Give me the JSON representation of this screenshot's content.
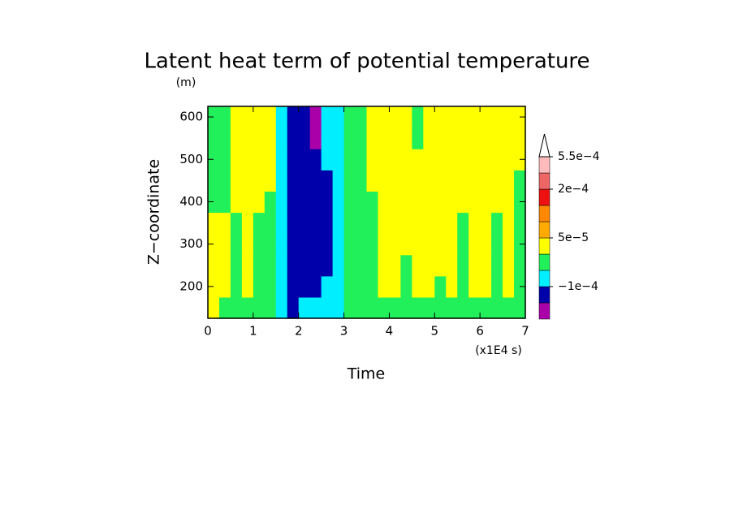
{
  "chart_data": {
    "type": "contour",
    "title": "Latent heat term of potential temperature",
    "y_unit": "(m)",
    "ylabel": "Z−coordinate",
    "xlabel": "Time",
    "x_unit": "(x1E4 s)",
    "xlim": [
      0,
      7
    ],
    "ylim": [
      125,
      625
    ],
    "xticks": [
      0,
      1,
      2,
      3,
      4,
      5,
      6,
      7
    ],
    "yticks": [
      200,
      300,
      400,
      500,
      600
    ],
    "x": [
      0.125,
      0.375,
      0.625,
      0.875,
      1.125,
      1.375,
      1.625,
      1.875,
      2.125,
      2.375,
      2.625,
      2.875,
      3.125,
      3.375,
      3.625,
      3.875,
      4.125,
      4.375,
      4.625,
      4.875,
      5.125,
      5.375,
      5.625,
      5.875,
      6.125,
      6.375,
      6.625,
      6.875
    ],
    "y": [
      150,
      200,
      250,
      300,
      350,
      400,
      450,
      500,
      550,
      600
    ],
    "z": [
      [
        2e-05,
        -2e-05,
        -2e-05,
        -2e-05,
        -2e-05,
        -2e-05,
        -7e-05,
        -0.00012,
        -7e-05,
        -7e-05,
        -7e-05,
        -7e-05,
        -2e-05,
        -2e-05,
        -2e-05,
        -2e-05,
        -2e-05,
        -2e-05,
        -2e-05,
        -2e-05,
        -2e-05,
        -2e-05,
        -2e-05,
        -2e-05,
        -2e-05,
        -2e-05,
        -2e-05,
        -2e-05
      ],
      [
        2e-05,
        2e-05,
        -2e-05,
        2e-05,
        -2e-05,
        -2e-05,
        -7e-05,
        -0.00012,
        -0.00012,
        -0.00012,
        -7e-05,
        -7e-05,
        -2e-05,
        -2e-05,
        -2e-05,
        2e-05,
        2e-05,
        -2e-05,
        2e-05,
        2e-05,
        -2e-05,
        2e-05,
        -2e-05,
        2e-05,
        2e-05,
        -2e-05,
        2e-05,
        -2e-05
      ],
      [
        2e-05,
        2e-05,
        -2e-05,
        2e-05,
        -2e-05,
        -2e-05,
        -7e-05,
        -0.00012,
        -0.00012,
        -0.00012,
        -0.00012,
        -7e-05,
        -2e-05,
        -2e-05,
        -2e-05,
        2e-05,
        2e-05,
        -2e-05,
        2e-05,
        2e-05,
        2e-05,
        2e-05,
        -2e-05,
        2e-05,
        2e-05,
        -2e-05,
        2e-05,
        -2e-05
      ],
      [
        2e-05,
        2e-05,
        -2e-05,
        2e-05,
        -2e-05,
        -2e-05,
        -7e-05,
        -0.00012,
        -0.00012,
        -0.00012,
        -0.00012,
        -7e-05,
        -2e-05,
        -2e-05,
        -2e-05,
        2e-05,
        2e-05,
        2e-05,
        2e-05,
        2e-05,
        2e-05,
        2e-05,
        -2e-05,
        2e-05,
        2e-05,
        -2e-05,
        2e-05,
        -2e-05
      ],
      [
        2e-05,
        2e-05,
        -2e-05,
        2e-05,
        -2e-05,
        -2e-05,
        -7e-05,
        -0.00012,
        -0.00012,
        -0.00012,
        -0.00012,
        -7e-05,
        -2e-05,
        -2e-05,
        -2e-05,
        2e-05,
        2e-05,
        2e-05,
        2e-05,
        2e-05,
        2e-05,
        2e-05,
        -2e-05,
        2e-05,
        2e-05,
        -2e-05,
        2e-05,
        -2e-05
      ],
      [
        -2e-05,
        -2e-05,
        2e-05,
        2e-05,
        2e-05,
        -2e-05,
        -7e-05,
        -0.00012,
        -0.00012,
        -0.00012,
        -0.00012,
        -7e-05,
        -2e-05,
        -2e-05,
        -2e-05,
        2e-05,
        2e-05,
        2e-05,
        2e-05,
        2e-05,
        2e-05,
        2e-05,
        2e-05,
        2e-05,
        2e-05,
        2e-05,
        2e-05,
        -2e-05
      ],
      [
        -2e-05,
        -2e-05,
        2e-05,
        2e-05,
        2e-05,
        2e-05,
        -7e-05,
        -0.00012,
        -0.00012,
        -0.00012,
        -0.00012,
        -7e-05,
        -2e-05,
        -2e-05,
        2e-05,
        2e-05,
        2e-05,
        2e-05,
        2e-05,
        2e-05,
        2e-05,
        2e-05,
        2e-05,
        2e-05,
        2e-05,
        2e-05,
        2e-05,
        -2e-05
      ],
      [
        -2e-05,
        -2e-05,
        2e-05,
        2e-05,
        2e-05,
        2e-05,
        -7e-05,
        -0.00012,
        -0.00012,
        -0.00012,
        -7e-05,
        -7e-05,
        -2e-05,
        -2e-05,
        2e-05,
        2e-05,
        2e-05,
        2e-05,
        2e-05,
        2e-05,
        2e-05,
        2e-05,
        2e-05,
        2e-05,
        2e-05,
        2e-05,
        2e-05,
        2e-05
      ],
      [
        -2e-05,
        -2e-05,
        2e-05,
        2e-05,
        2e-05,
        2e-05,
        -7e-05,
        -0.00012,
        -0.00012,
        -0.00017,
        -7e-05,
        -7e-05,
        -2e-05,
        -2e-05,
        2e-05,
        2e-05,
        2e-05,
        2e-05,
        -2e-05,
        2e-05,
        2e-05,
        2e-05,
        2e-05,
        2e-05,
        2e-05,
        2e-05,
        2e-05,
        2e-05
      ],
      [
        -2e-05,
        -2e-05,
        2e-05,
        2e-05,
        2e-05,
        2e-05,
        -7e-05,
        -0.00012,
        -0.00012,
        -0.00017,
        -7e-05,
        -7e-05,
        -2e-05,
        -2e-05,
        2e-05,
        2e-05,
        2e-05,
        2e-05,
        -2e-05,
        2e-05,
        2e-05,
        2e-05,
        2e-05,
        2e-05,
        2e-05,
        2e-05,
        2e-05,
        2e-05
      ]
    ],
    "levels": [
      -0.00015,
      -0.0001,
      -5e-05,
      0,
      5e-05,
      0.0001,
      0.00015,
      0.0002,
      0.0003,
      0.00055
    ],
    "colors": [
      "#aa00aa",
      "#0000aa",
      "#00eeff",
      "#22f05a",
      "#ffff00",
      "#ffaa00",
      "#ff8800",
      "#ee1111",
      "#ee6666",
      "#ffbbbb",
      "#ffffff"
    ],
    "colorbar_ticks": [
      {
        "value": -0.0001,
        "label": "−1e−4"
      },
      {
        "value": 5e-05,
        "label": "5e−5"
      },
      {
        "value": 0.0002,
        "label": "2e−4"
      },
      {
        "value": 0.00055,
        "label": "5.5e−4"
      }
    ]
  }
}
